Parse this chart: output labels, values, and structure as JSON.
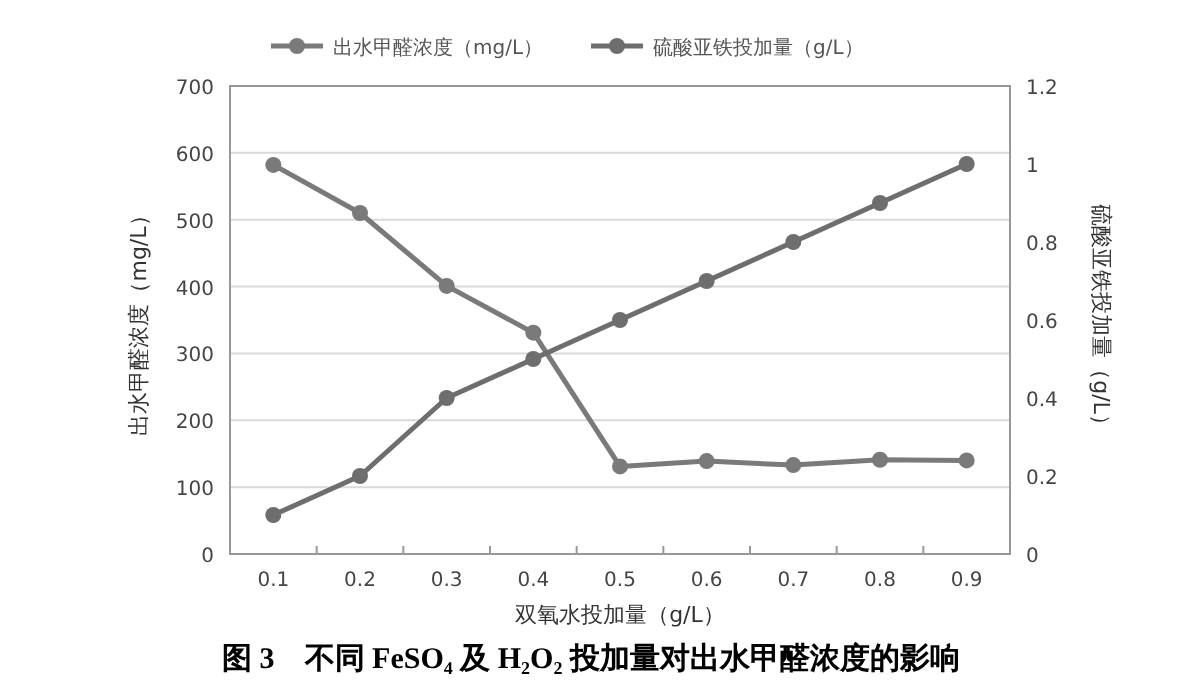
{
  "chart_data": {
    "type": "line",
    "title": "图 3　不同 FeSO₄ 及 H₂O₂ 投加量对出水甲醛浓度的影响",
    "xlabel": "双氧水投加量（g/L）",
    "ylabel": "出水甲醛浓度（mg/L）",
    "y2label": "硫酸亚铁投加量（g/L）",
    "categories": [
      "0.1",
      "0.2",
      "0.3",
      "0.4",
      "0.5",
      "0.6",
      "0.7",
      "0.8",
      "0.9"
    ],
    "series": [
      {
        "name": "出水甲醛浓度（mg/L）",
        "color": "#7a7a7a",
        "values": [
          582,
          510,
          401,
          331,
          131,
          139,
          133,
          141,
          140
        ]
      },
      {
        "name": "硫酸亚铁投加量（g/L）",
        "color": "#6e6e6e",
        "axis": "y2",
        "values": [
          0.1,
          0.2,
          0.4,
          0.5,
          0.6,
          0.7,
          0.8,
          0.9,
          1.0
        ]
      }
    ],
    "ylim": [
      0,
      700
    ],
    "yticks": [
      0,
      100,
      200,
      300,
      400,
      500,
      600,
      700
    ],
    "y2lim": [
      0,
      1.2
    ],
    "y2ticks": [
      0,
      0.2,
      0.4,
      0.6,
      0.8,
      1,
      1.2
    ],
    "grid": "y",
    "legend": "top",
    "marker": "circle",
    "line_style": "solid"
  }
}
